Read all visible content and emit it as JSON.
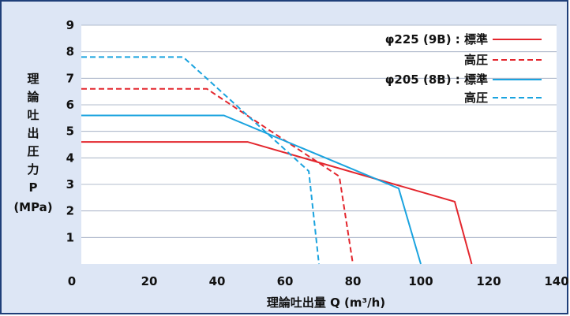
{
  "chart_data": {
    "type": "line",
    "xlabel": "理論吐出量 Q (m³/h)",
    "ylabel_lines": [
      "理",
      "論",
      "吐",
      "出",
      "圧",
      "力",
      "P",
      "(MPa)"
    ],
    "xlim": [
      0,
      140
    ],
    "ylim": [
      0,
      9
    ],
    "x_ticks": [
      "0",
      "20",
      "40",
      "60",
      "80",
      "100",
      "120",
      "140"
    ],
    "y_ticks": [
      "1",
      "2",
      "3",
      "4",
      "5",
      "6",
      "7",
      "8",
      "9"
    ],
    "grid": "horizontal",
    "legend_position": "top-right",
    "legend": [
      {
        "label": "φ225 (9B) : 標準",
        "series": 0
      },
      {
        "label": "高圧",
        "series": 1
      },
      {
        "label": "φ205 (8B) : 標準",
        "series": 2
      },
      {
        "label": "高圧",
        "series": 3
      }
    ],
    "series": [
      {
        "color": "#e3262d",
        "dash": "solid",
        "points": [
          [
            0,
            4.6
          ],
          [
            49,
            4.6
          ],
          [
            110,
            2.35
          ],
          [
            115,
            0
          ]
        ]
      },
      {
        "color": "#e3262d",
        "dash": "dashed",
        "points": [
          [
            0,
            6.6
          ],
          [
            37,
            6.6
          ],
          [
            76,
            3.3
          ],
          [
            80,
            0
          ]
        ]
      },
      {
        "color": "#1aa3df",
        "dash": "solid",
        "points": [
          [
            0,
            5.6
          ],
          [
            42,
            5.6
          ],
          [
            93.5,
            2.85
          ],
          [
            100,
            0
          ]
        ]
      },
      {
        "color": "#1aa3df",
        "dash": "dashed",
        "points": [
          [
            0,
            7.8
          ],
          [
            30,
            7.8
          ],
          [
            67,
            3.5
          ],
          [
            70,
            0
          ]
        ]
      }
    ]
  }
}
